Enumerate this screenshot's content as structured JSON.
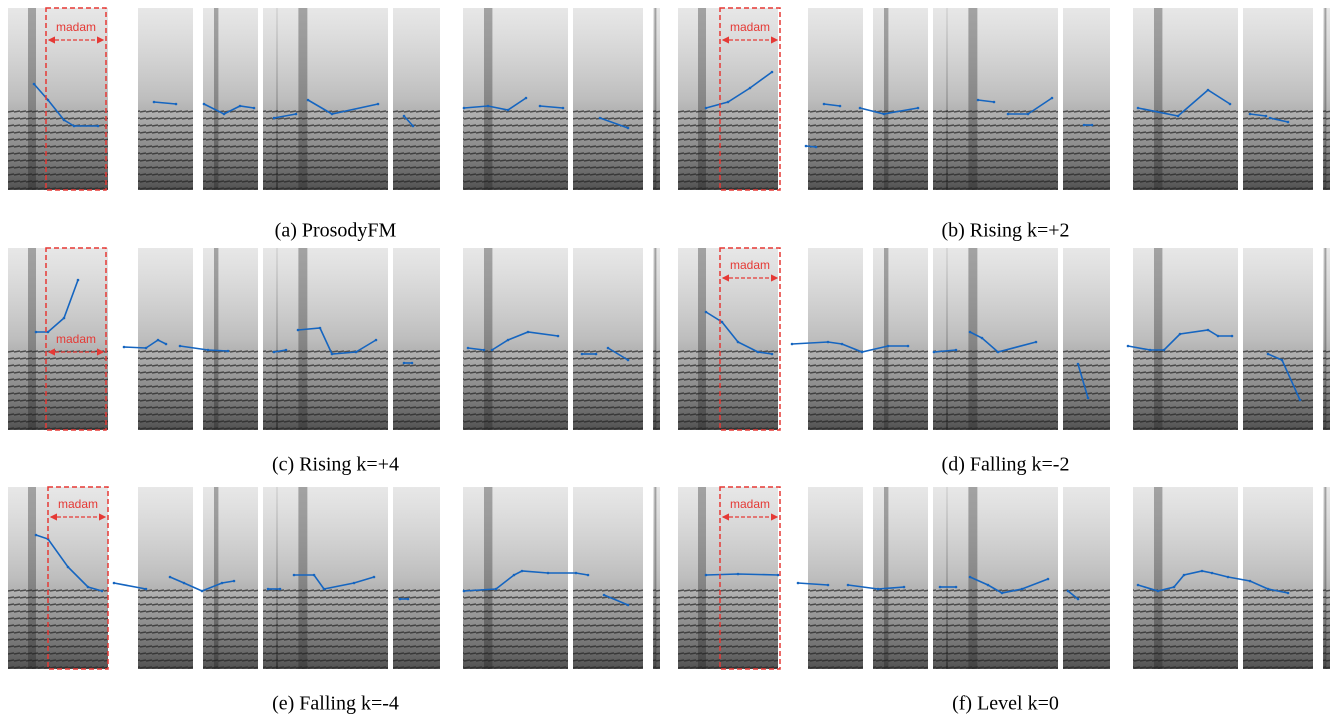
{
  "panels": [
    {
      "caption": "(a) ProsodyFM",
      "label": "madam"
    },
    {
      "caption": "(b) Rising k=+2",
      "label": "madam"
    },
    {
      "caption": "(c) Rising k=+4",
      "label": "madam"
    },
    {
      "caption": "(d) Falling k=-2",
      "label": "madam"
    },
    {
      "caption": "(e) Falling k=-4",
      "label": "madam"
    },
    {
      "caption": "(f) Level k=0",
      "label": "madam"
    }
  ]
}
